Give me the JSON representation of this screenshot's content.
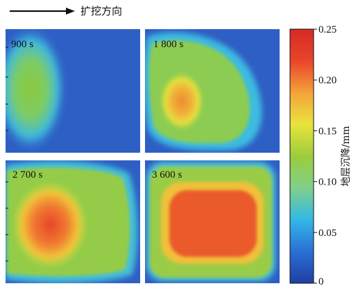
{
  "header": {
    "arrow_label": "扩挖方向"
  },
  "chart_data": {
    "type": "heatmap",
    "panels": [
      {
        "label": "900 s",
        "max_settlement": 0.15,
        "shape": "one ellipse-shaped settlement trough in the left third of the panel"
      },
      {
        "label": "1 800 s",
        "max_settlement": 0.2,
        "shape": "wider trough with its peak in the lower left"
      },
      {
        "label": "2 700 s",
        "max_settlement": 0.22,
        "shape": "trough covering most of the panel, peak at the lower left"
      },
      {
        "label": "3 600 s",
        "max_settlement": 0.23,
        "shape": "broad rectangular trough across the whole panel"
      }
    ],
    "colorbar": {
      "title": "地层沉降/mm",
      "min": 0,
      "max": 0.25,
      "ticks": [
        "0",
        "0.05",
        "0.10",
        "0.15",
        "0.20",
        "0.25"
      ],
      "colormap": [
        "#1f3fa3",
        "#2a6fd6",
        "#34b8e6",
        "#7fd08a",
        "#9ccc3c",
        "#e8e43c",
        "#f5a33a",
        "#e8452a",
        "#d62a26"
      ]
    }
  }
}
